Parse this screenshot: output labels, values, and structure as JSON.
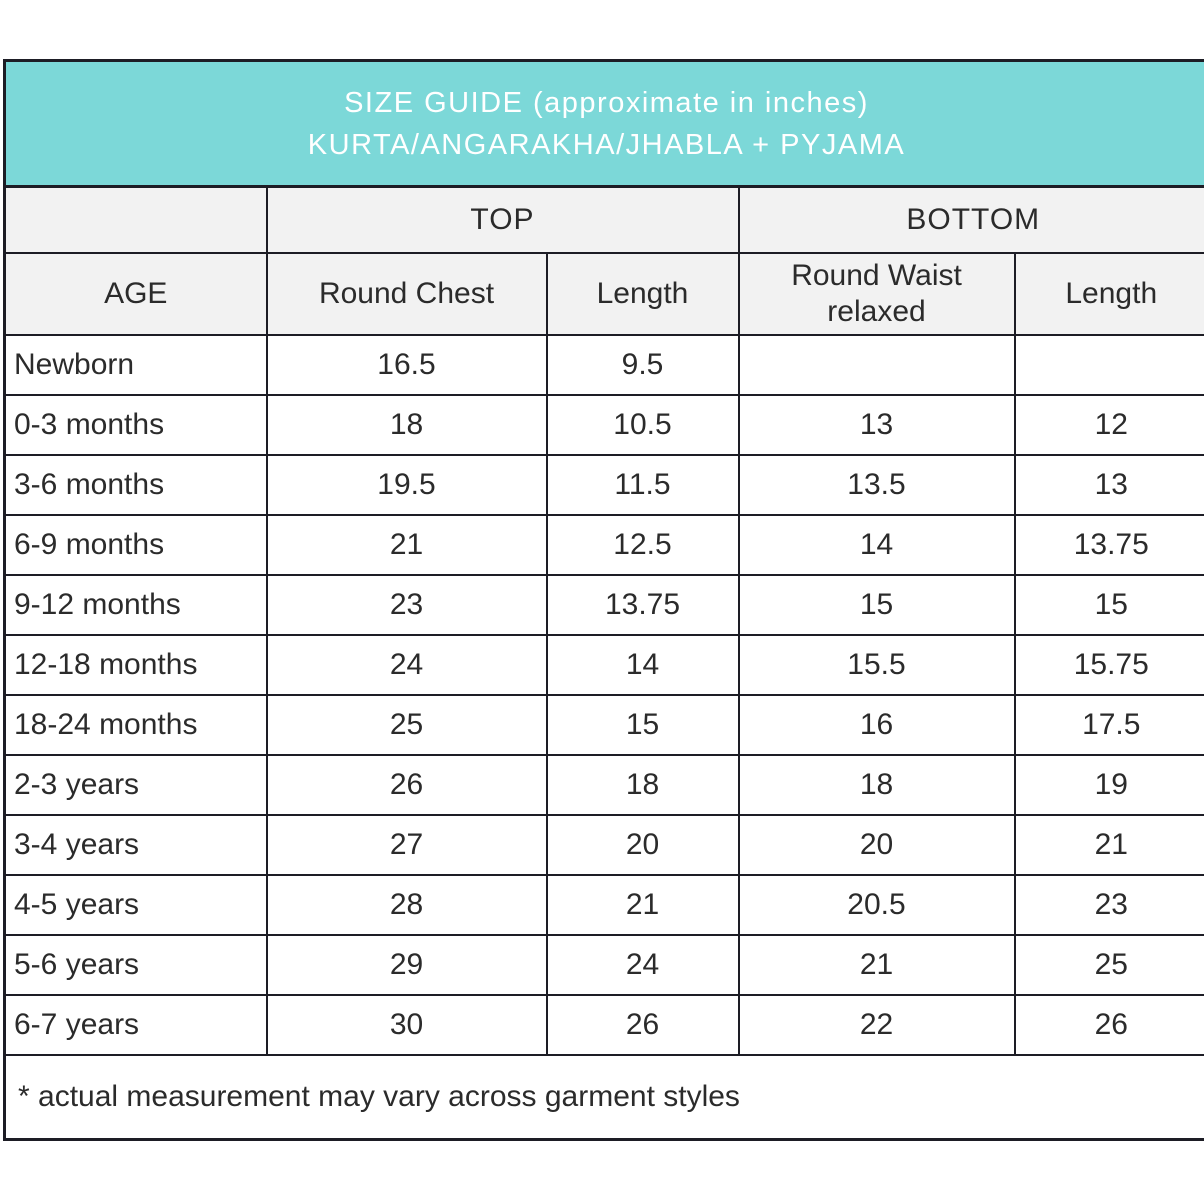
{
  "title": {
    "line1": "SIZE GUIDE (approximate in inches)",
    "line2": "KURTA/ANGARAKHA/JHABLA + PYJAMA"
  },
  "groups": {
    "top": "TOP",
    "bottom": "BOTTOM"
  },
  "columns": {
    "age": "AGE",
    "round_chest": "Round Chest",
    "top_length": "Length",
    "round_waist": "Round Waist\nrelaxed",
    "bottom_length": "Length"
  },
  "rows": [
    {
      "age": "Newborn",
      "round_chest": "16.5",
      "top_length": "9.5",
      "round_waist": "",
      "bottom_length": ""
    },
    {
      "age": "0-3 months",
      "round_chest": "18",
      "top_length": "10.5",
      "round_waist": "13",
      "bottom_length": "12"
    },
    {
      "age": "3-6 months",
      "round_chest": "19.5",
      "top_length": "11.5",
      "round_waist": "13.5",
      "bottom_length": "13"
    },
    {
      "age": "6-9 months",
      "round_chest": "21",
      "top_length": "12.5",
      "round_waist": "14",
      "bottom_length": "13.75"
    },
    {
      "age": "9-12 months",
      "round_chest": "23",
      "top_length": "13.75",
      "round_waist": "15",
      "bottom_length": "15"
    },
    {
      "age": "12-18 months",
      "round_chest": "24",
      "top_length": "14",
      "round_waist": "15.5",
      "bottom_length": "15.75"
    },
    {
      "age": "18-24 months",
      "round_chest": "25",
      "top_length": "15",
      "round_waist": "16",
      "bottom_length": "17.5"
    },
    {
      "age": "2-3 years",
      "round_chest": "26",
      "top_length": "18",
      "round_waist": "18",
      "bottom_length": "19"
    },
    {
      "age": "3-4 years",
      "round_chest": "27",
      "top_length": "20",
      "round_waist": "20",
      "bottom_length": "21"
    },
    {
      "age": "4-5 years",
      "round_chest": "28",
      "top_length": "21",
      "round_waist": "20.5",
      "bottom_length": "23"
    },
    {
      "age": "5-6 years",
      "round_chest": "29",
      "top_length": "24",
      "round_waist": "21",
      "bottom_length": "25"
    },
    {
      "age": "6-7 years",
      "round_chest": "30",
      "top_length": "26",
      "round_waist": "22",
      "bottom_length": "26"
    }
  ],
  "note": "* actual measurement may vary across garment styles",
  "colors": {
    "header_teal": "#7cd8d8",
    "header_gray": "#f2f2f2",
    "border": "#1d1d25",
    "text": "#2b2b2b",
    "title_text": "#ffffff"
  }
}
